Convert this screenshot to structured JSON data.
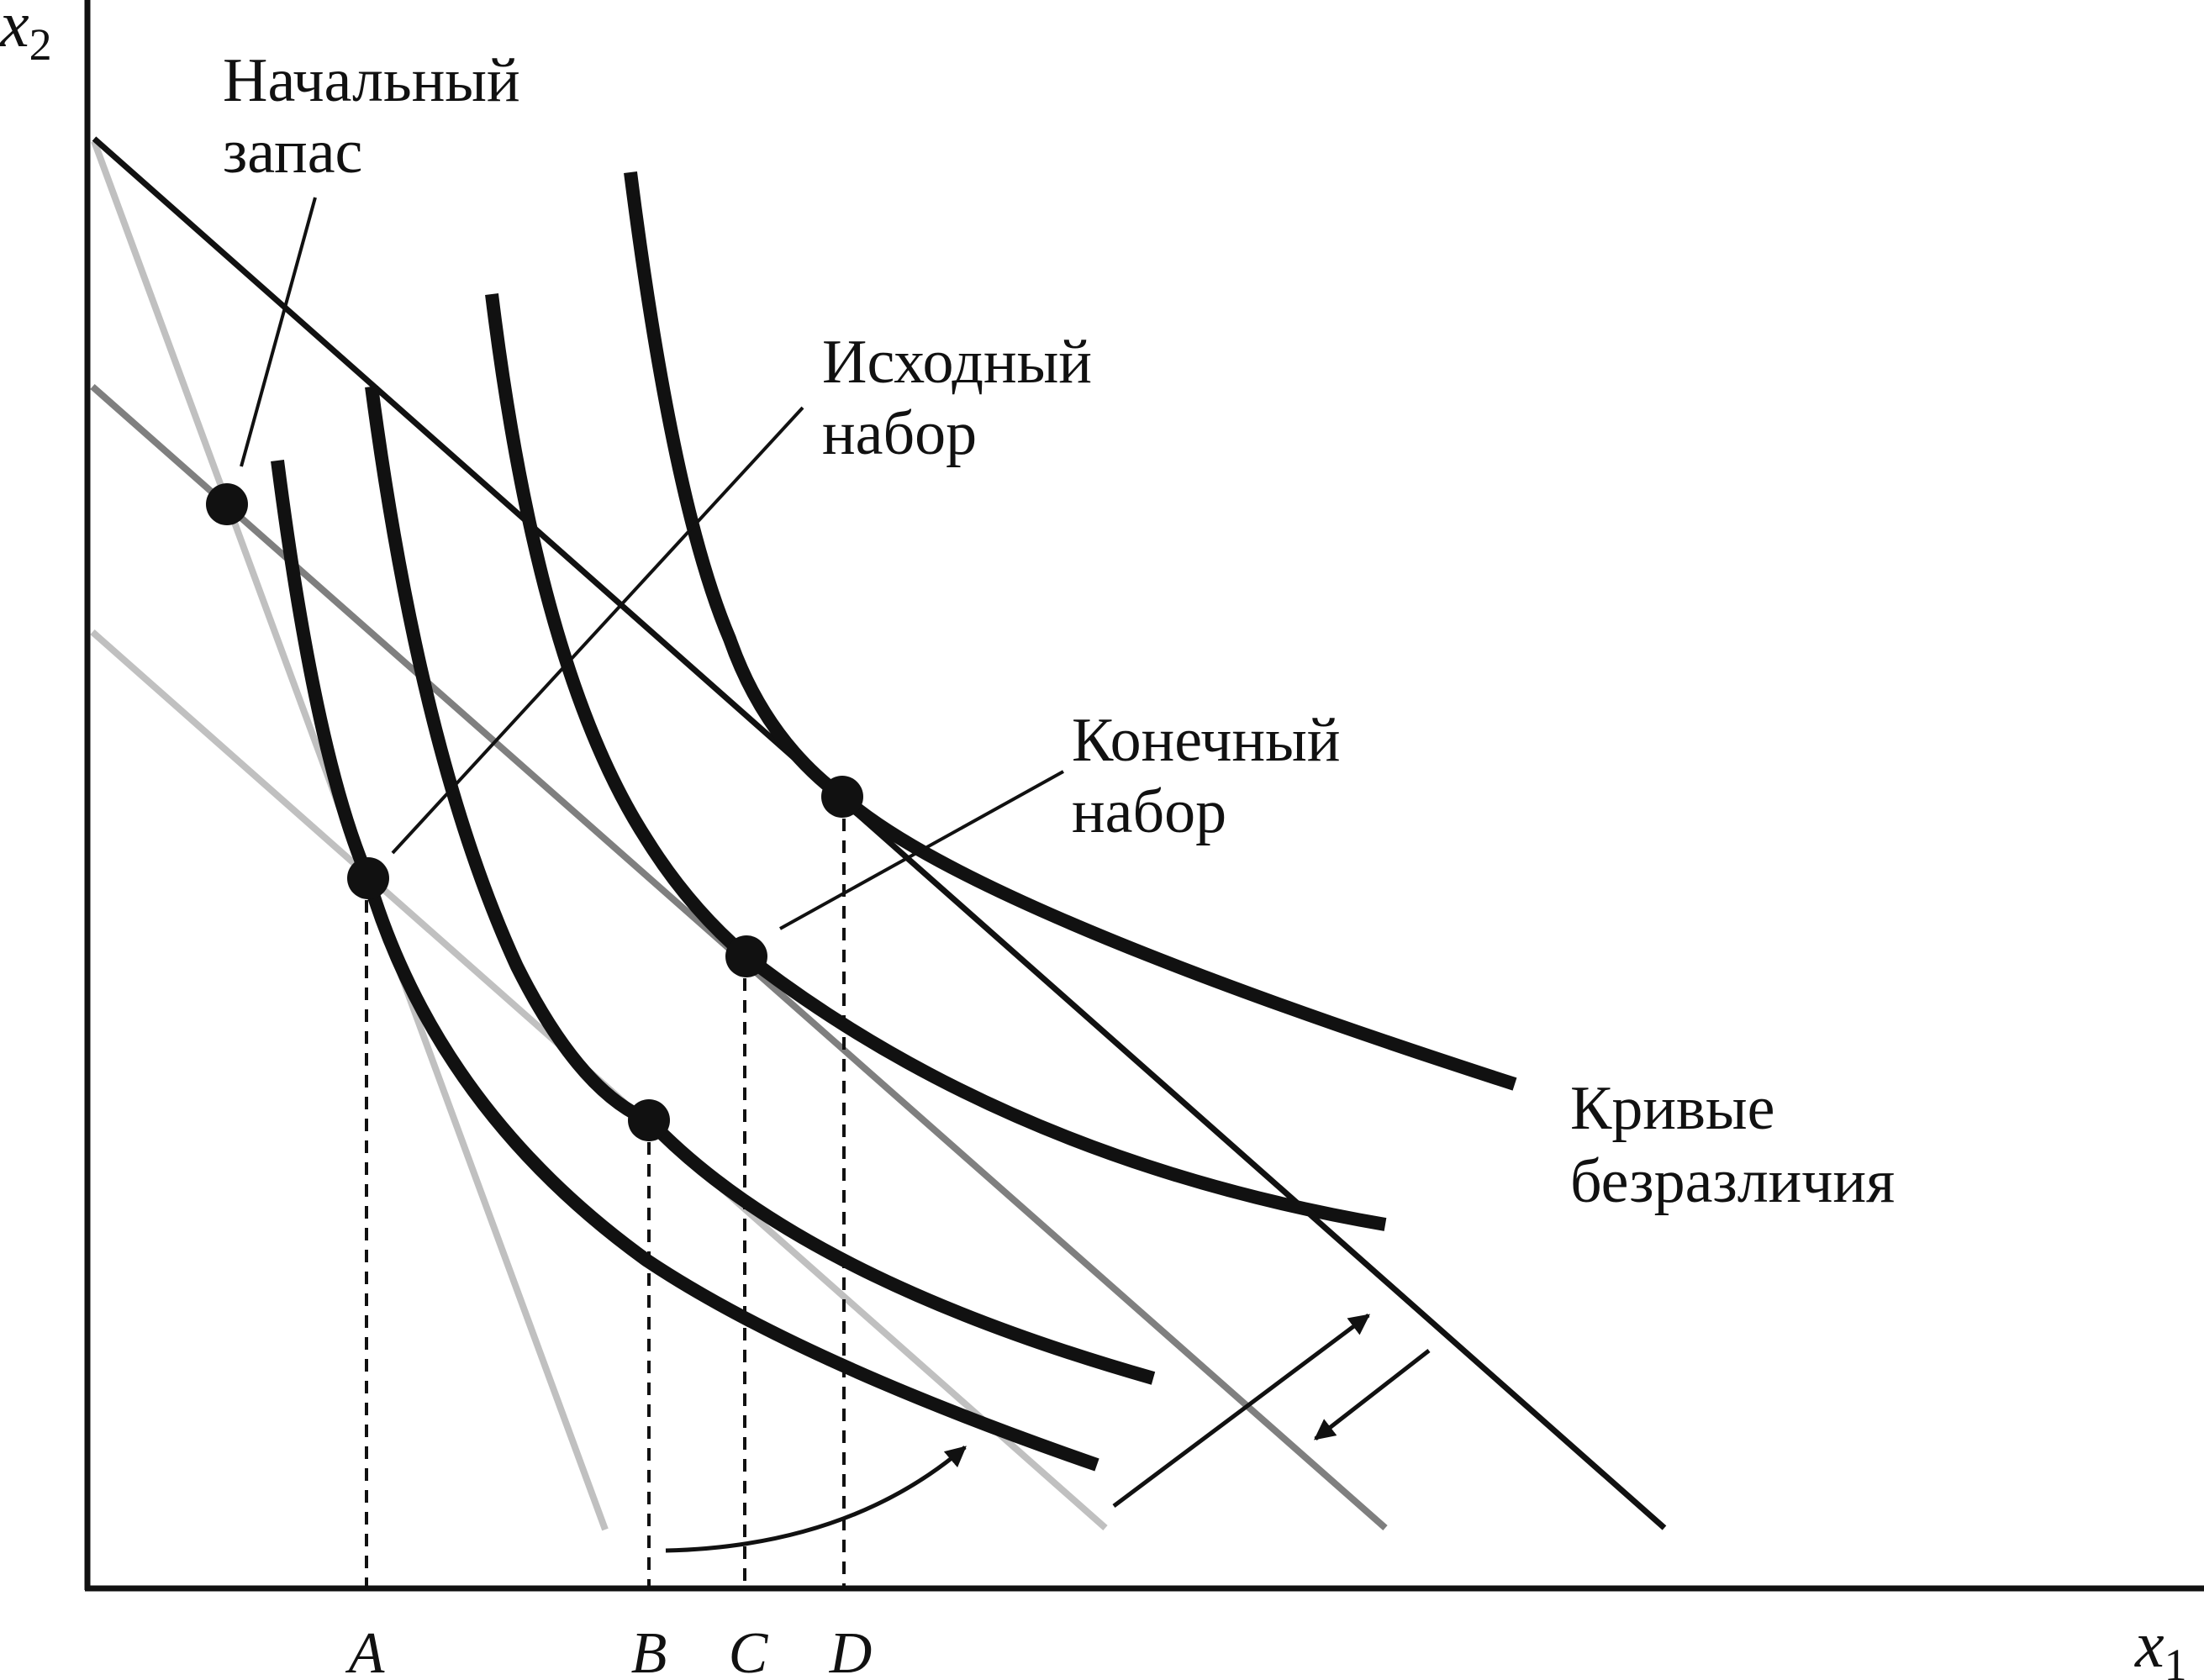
{
  "axes": {
    "x_var": "x",
    "x_sub": "1",
    "y_var": "x",
    "y_sub": "2"
  },
  "annotations": {
    "endowment": [
      "Начальный",
      "запас"
    ],
    "original_bundle": [
      "Исходный",
      "набор"
    ],
    "final_bundle": [
      "Конечный",
      "набор"
    ],
    "indifference_curves": [
      "Кривые",
      "безразличия"
    ]
  },
  "x_ticks": [
    "A",
    "B",
    "C",
    "D"
  ],
  "colors": {
    "ink": "#111111",
    "budget_light": "#c0c0c0",
    "budget_mid": "#7f7f7f"
  }
}
